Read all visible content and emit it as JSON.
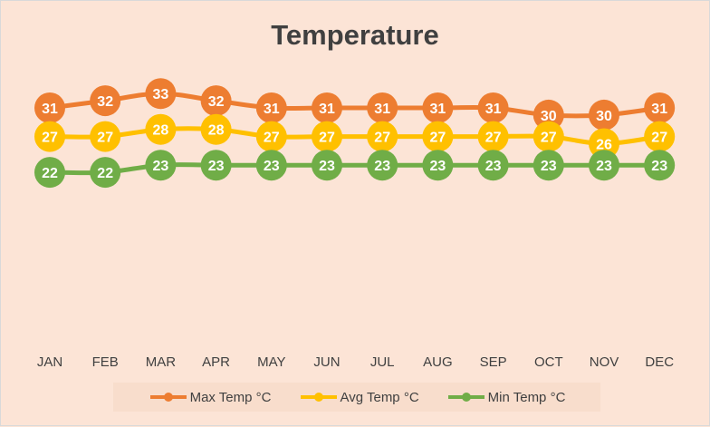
{
  "chart_data": {
    "type": "line",
    "title": "Temperature",
    "xlabel": "",
    "ylabel": "",
    "categories": [
      "JAN",
      "FEB",
      "MAR",
      "APR",
      "MAY",
      "JUN",
      "JUL",
      "AUG",
      "SEP",
      "OCT",
      "NOV",
      "DEC"
    ],
    "series": [
      {
        "name": "Max Temp °C",
        "color": "#ed7d31",
        "values": [
          31,
          32,
          33,
          32,
          31,
          31,
          31,
          31,
          31,
          30,
          30,
          31
        ]
      },
      {
        "name": "Avg Temp °C",
        "color": "#ffc000",
        "values": [
          27,
          27,
          28,
          28,
          27,
          27,
          27,
          27,
          27,
          27,
          26,
          27
        ]
      },
      {
        "name": "Min Temp °C",
        "color": "#70ad47",
        "values": [
          22,
          22,
          23,
          23,
          23,
          23,
          23,
          23,
          23,
          23,
          23,
          23
        ]
      }
    ],
    "grid": false,
    "legend_position": "bottom",
    "data_labels": true
  }
}
